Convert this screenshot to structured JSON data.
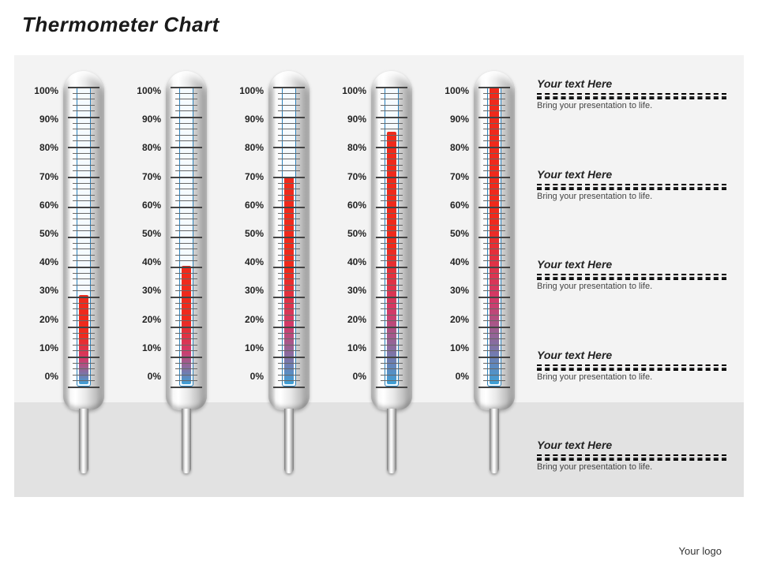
{
  "title": "Thermometer Chart",
  "logo_text": "Your logo",
  "chart": {
    "type": "thermometer-bar",
    "background_color": "#f3f3f3",
    "floor_color": "#e2e2e2",
    "scale": {
      "min": 0,
      "max": 100,
      "step": 10,
      "suffix": "%"
    },
    "tube_border_color": "#2a7fb8",
    "tube_bg_color": "#f5fbff",
    "fluid_gradient_top": "#ef2a1c",
    "fluid_gradient_mid": "#d13a6a",
    "fluid_gradient_bottom": "#3ea0d6",
    "label_fontsize": 12,
    "thermometers": [
      {
        "value": 30
      },
      {
        "value": 40
      },
      {
        "value": 70
      },
      {
        "value": 85
      },
      {
        "value": 100
      }
    ]
  },
  "side_items": [
    {
      "heading": "Your text Here",
      "sub": "Bring your presentation to life.",
      "rule_top": "#d64a2a",
      "rule_bottom": "#2a2a2a"
    },
    {
      "heading": "Your text Here",
      "sub": "Bring your presentation to life.",
      "rule_top": "#d64a2a",
      "rule_bottom": "#2a2a2a"
    },
    {
      "heading": "Your text Here",
      "sub": "Bring your presentation to life.",
      "rule_top": "#d64a2a",
      "rule_bottom": "#2a2a2a"
    },
    {
      "heading": "Your text Here",
      "sub": "Bring your presentation to life.",
      "rule_top": "#d64a2a",
      "rule_bottom": "#2a2a2a"
    },
    {
      "heading": "Your text Here",
      "sub": "Bring your presentation to life.",
      "rule_top": "#d64a2a",
      "rule_bottom": "#2a2a2a"
    }
  ]
}
